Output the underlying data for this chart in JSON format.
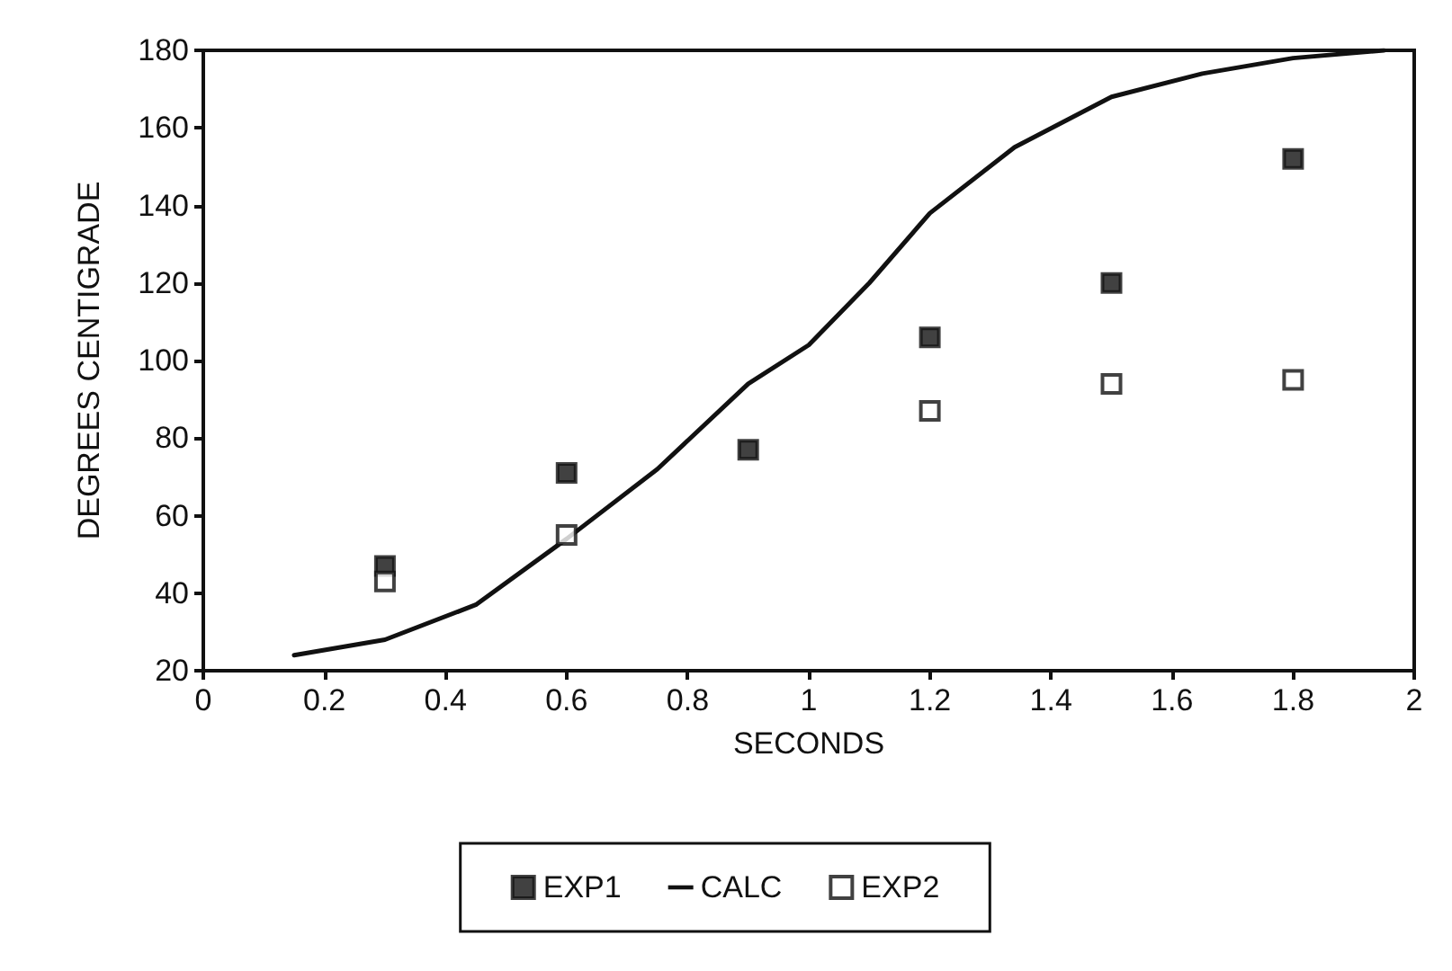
{
  "chart_data": {
    "type": "scatter",
    "xlabel": "SECONDS",
    "ylabel": "DEGREES CENTIGRADE",
    "xlim": [
      0,
      2
    ],
    "ylim": [
      20,
      180
    ],
    "xticks": [
      0,
      0.2,
      0.4,
      0.6,
      0.8,
      1,
      1.2,
      1.4,
      1.6,
      1.8,
      2
    ],
    "yticks": [
      20,
      40,
      60,
      80,
      100,
      120,
      140,
      160,
      180
    ],
    "grid": false,
    "legend": "bottom",
    "series": [
      {
        "name": "EXP1",
        "marker": "square",
        "color": "#111111",
        "x": [
          0.3,
          0.6,
          0.9,
          1.2,
          1.5,
          1.8
        ],
        "values": [
          47,
          71,
          77,
          106,
          120,
          152
        ]
      },
      {
        "name": "CALC",
        "type": "line",
        "marker": "none",
        "line_style": "solid",
        "color": "#111111",
        "x": [
          0.15,
          0.3,
          0.45,
          0.6,
          0.75,
          0.9,
          1.0,
          1.1,
          1.2,
          1.34,
          1.5,
          1.65,
          1.8,
          1.95
        ],
        "values": [
          24,
          28,
          37,
          54,
          72,
          94,
          104,
          120,
          138,
          155,
          168,
          174,
          178,
          180
        ]
      },
      {
        "name": "EXP2",
        "marker": "square",
        "color": "#ffffff",
        "x": [
          0.3,
          0.6,
          0.9,
          1.2,
          1.5,
          1.8
        ],
        "values": [
          43,
          55,
          null,
          87,
          94,
          95
        ]
      }
    ]
  }
}
